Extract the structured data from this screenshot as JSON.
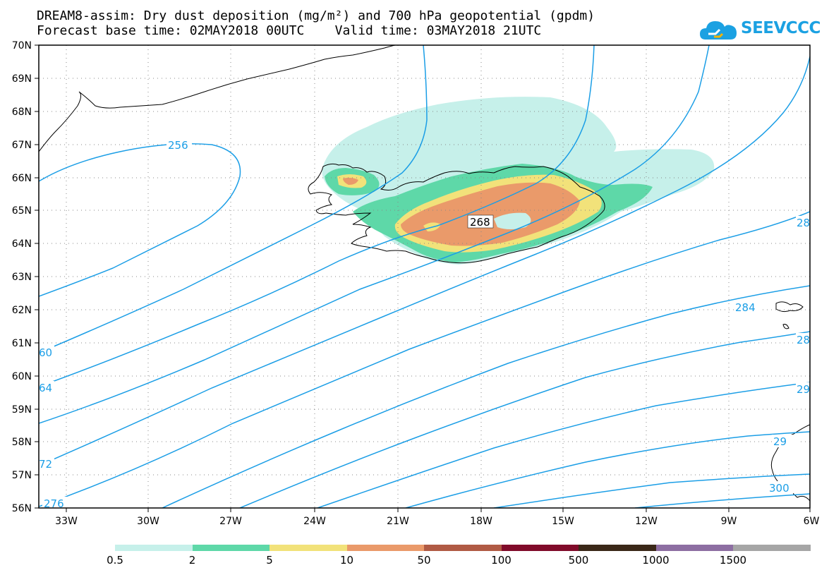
{
  "title": {
    "line1": "DREAM8-assim: Dry dust deposition (mg/m²) and 700 hPa geopotential (gpdm)",
    "line2": "Forecast base time: 02MAY2018 00UTC    Valid time: 03MAY2018 21UTC"
  },
  "logo": {
    "text": "SEEVCCC",
    "icon": "cloud-icon",
    "color": "#1ba1e2"
  },
  "axes": {
    "lat_labels": [
      "70N",
      "69N",
      "68N",
      "67N",
      "66N",
      "65N",
      "64N",
      "63N",
      "62N",
      "61N",
      "60N",
      "59N",
      "58N",
      "57N",
      "56N"
    ],
    "lon_labels": [
      "33W",
      "30W",
      "27W",
      "24W",
      "21W",
      "18W",
      "15W",
      "12W",
      "9W",
      "6W"
    ]
  },
  "contour_labels": [
    "256",
    "268",
    "284",
    "60",
    "64",
    "72",
    "276",
    "28",
    "28",
    "29",
    "29",
    "300"
  ],
  "colorbar": {
    "labels": [
      "0.5",
      "2",
      "5",
      "10",
      "50",
      "100",
      "500",
      "1000",
      "1500"
    ],
    "colors": [
      "#c6f0ea",
      "#5ed8a8",
      "#f2e27a",
      "#ea9a6a",
      "#b05a44",
      "#800b2a",
      "#3a2818",
      "#8d6ea2",
      "#a6a6a6"
    ]
  },
  "colors": {
    "contour": "#1b9ee6",
    "coast": "#000000"
  }
}
